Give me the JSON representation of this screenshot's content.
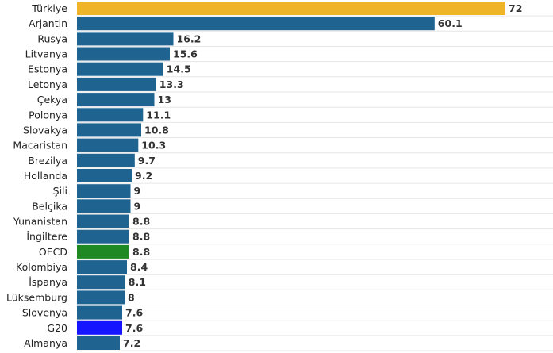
{
  "chart_data": {
    "type": "bar",
    "orientation": "horizontal",
    "categories": [
      "Türkiye",
      "Arjantin",
      "Rusya",
      "Litvanya",
      "Estonya",
      "Letonya",
      "Çekya",
      "Polonya",
      "Slovakya",
      "Macaristan",
      "Brezilya",
      "Hollanda",
      "Şili",
      "Belçika",
      "Yunanistan",
      "İngiltere",
      "OECD",
      "Kolombiya",
      "İspanya",
      "Lüksemburg",
      "Slovenya",
      "G20",
      "Almanya"
    ],
    "values": [
      72,
      60.1,
      16.2,
      15.6,
      14.5,
      13.3,
      13,
      11.1,
      10.8,
      10.3,
      9.7,
      9.2,
      9,
      9,
      8.8,
      8.8,
      8.8,
      8.4,
      8.1,
      8,
      7.6,
      7.6,
      7.2
    ],
    "value_labels": [
      "72",
      "60.1",
      "16.2",
      "15.6",
      "14.5",
      "13.3",
      "13",
      "11.1",
      "10.8",
      "10.3",
      "9.7",
      "9.2",
      "9",
      "9",
      "8.8",
      "8.8",
      "8.8",
      "8.4",
      "8.1",
      "8",
      "7.6",
      "7.6",
      "7.2"
    ],
    "bar_colors": [
      "#f0b429",
      "#1f6391",
      "#1f6391",
      "#1f6391",
      "#1f6391",
      "#1f6391",
      "#1f6391",
      "#1f6391",
      "#1f6391",
      "#1f6391",
      "#1f6391",
      "#1f6391",
      "#1f6391",
      "#1f6391",
      "#1f6391",
      "#1f6391",
      "#1f8a23",
      "#1f6391",
      "#1f6391",
      "#1f6391",
      "#1f6391",
      "#1515ff",
      "#1f6391"
    ],
    "xlim": [
      0,
      72
    ],
    "grid": true,
    "legend": "none"
  }
}
